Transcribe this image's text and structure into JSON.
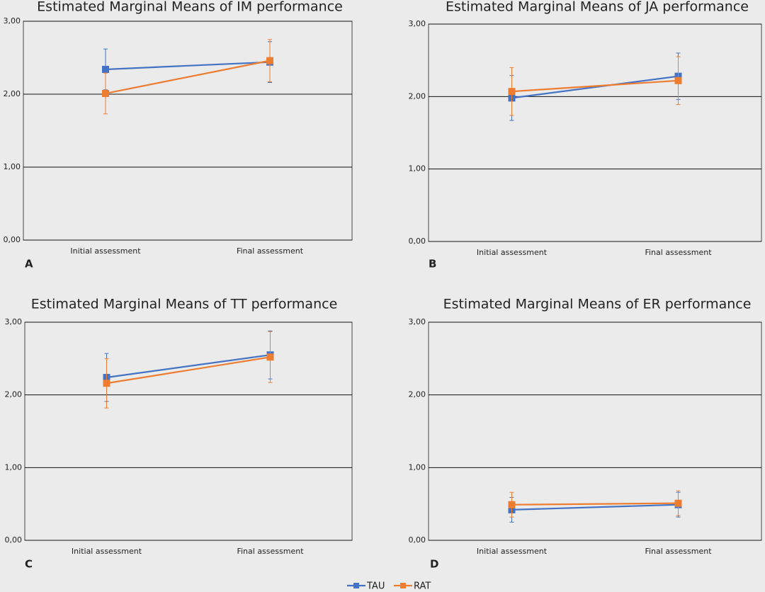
{
  "chart_data": [
    {
      "type": "line",
      "title": "Estimated Marginal Means of IM performance",
      "panel_label": "A",
      "categories": [
        "Initial assessment",
        "Final assessment"
      ],
      "series": [
        {
          "name": "TAU",
          "color": "#4472c4",
          "values": [
            2.34,
            2.44
          ],
          "errors": [
            0.28,
            0.28
          ]
        },
        {
          "name": "RAT",
          "color": "#ed7d31",
          "values": [
            2.01,
            2.46
          ],
          "errors": [
            0.28,
            0.29
          ]
        }
      ],
      "ylim": [
        0,
        3
      ],
      "yticks": [
        {
          "value": 0,
          "label": "0,00"
        },
        {
          "value": 1,
          "label": "1,00"
        },
        {
          "value": 2,
          "label": "2,00"
        },
        {
          "value": 3,
          "label": "3,00"
        }
      ],
      "grid": true
    },
    {
      "type": "line",
      "title": "Estimated Marginal Means of JA performance",
      "panel_label": "B",
      "categories": [
        "Initial assessment",
        "Final assessment"
      ],
      "series": [
        {
          "name": "TAU",
          "color": "#4472c4",
          "values": [
            1.98,
            2.28
          ],
          "errors": [
            0.31,
            0.32
          ]
        },
        {
          "name": "RAT",
          "color": "#ed7d31",
          "values": [
            2.07,
            2.22
          ],
          "errors": [
            0.33,
            0.33
          ]
        }
      ],
      "ylim": [
        0,
        3
      ],
      "yticks": [
        {
          "value": 0,
          "label": "0,00"
        },
        {
          "value": 1,
          "label": "1,00"
        },
        {
          "value": 2,
          "label": "2,00"
        },
        {
          "value": 3,
          "label": "3,00"
        }
      ],
      "grid": true
    },
    {
      "type": "line",
      "title": "Estimated Marginal Means of TT performance",
      "panel_label": "C",
      "categories": [
        "Initial assessment",
        "Final assessment"
      ],
      "series": [
        {
          "name": "TAU",
          "color": "#4472c4",
          "values": [
            2.24,
            2.55
          ],
          "errors": [
            0.33,
            0.33
          ]
        },
        {
          "name": "RAT",
          "color": "#ed7d31",
          "values": [
            2.16,
            2.52
          ],
          "errors": [
            0.34,
            0.35
          ]
        }
      ],
      "ylim": [
        0,
        3
      ],
      "yticks": [
        {
          "value": 0,
          "label": "0,00"
        },
        {
          "value": 1,
          "label": "1,00"
        },
        {
          "value": 2,
          "label": "2,00"
        },
        {
          "value": 3,
          "label": "3,00"
        }
      ],
      "grid": true
    },
    {
      "type": "line",
      "title": "Estimated Marginal Means of ER performance",
      "panel_label": "D",
      "categories": [
        "Initial assessment",
        "Final assessment"
      ],
      "series": [
        {
          "name": "TAU",
          "color": "#4472c4",
          "values": [
            0.42,
            0.49
          ],
          "errors": [
            0.17,
            0.17
          ]
        },
        {
          "name": "RAT",
          "color": "#ed7d31",
          "values": [
            0.49,
            0.51
          ],
          "errors": [
            0.17,
            0.17
          ]
        }
      ],
      "ylim": [
        0,
        3
      ],
      "yticks": [
        {
          "value": 0,
          "label": "0,00"
        },
        {
          "value": 1,
          "label": "1,00"
        },
        {
          "value": 2,
          "label": "2,00"
        },
        {
          "value": 3,
          "label": "3,00"
        }
      ],
      "grid": true
    }
  ]
}
